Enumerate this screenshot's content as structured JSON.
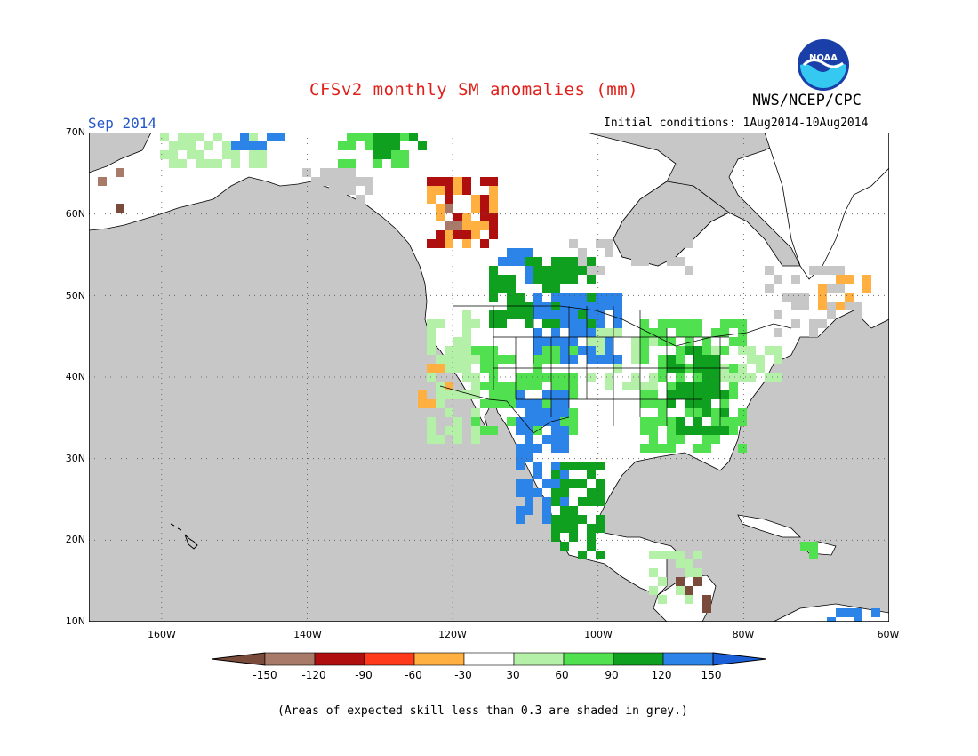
{
  "header": {
    "title": "CFSv2 monthly SM anomalies (mm)",
    "month": "Sep 2014",
    "agency": "NWS/NCEP/CPC",
    "initial_conditions": "Initial conditions: 1Aug2014-10Aug2014",
    "logo_text": "NOAA"
  },
  "axes": {
    "lat_labels": [
      "70N",
      "60N",
      "50N",
      "40N",
      "30N",
      "20N",
      "10N"
    ],
    "lon_labels": [
      "160W",
      "140W",
      "120W",
      "100W",
      "80W",
      "60W"
    ]
  },
  "colorbar": {
    "labels": [
      "-150",
      "-120",
      "-90",
      "-60",
      "-30",
      "30",
      "60",
      "90",
      "120",
      "150"
    ],
    "colors": [
      "#7a4a3a",
      "#a87a6a",
      "#b00f0f",
      "#ff3a1a",
      "#ffb040",
      "#ffffff",
      "#b4f0a8",
      "#50e050",
      "#10a020",
      "#2c84e8",
      "#1a5ed8"
    ]
  },
  "map": {
    "ocean_color": "#c7c7c7",
    "no_skill_grey": "#c7c7c7",
    "lat_range": [
      10,
      70
    ],
    "lon_range": [
      -170,
      -60
    ]
  },
  "footnote": "(Areas of expected skill less than 0.3 are shaded in grey.)"
}
